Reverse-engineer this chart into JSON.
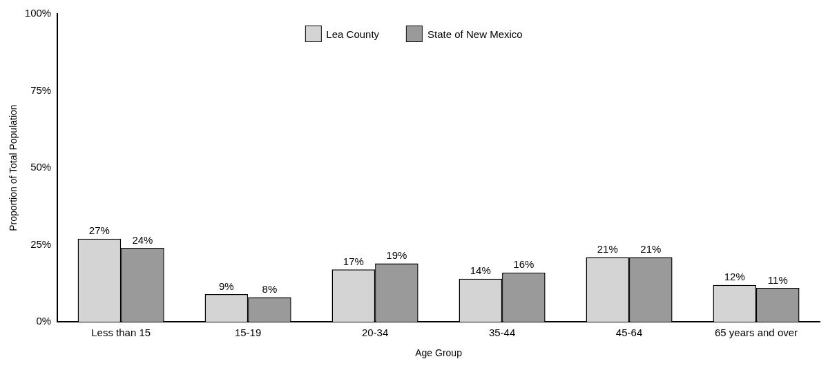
{
  "chart_data": {
    "type": "bar",
    "xlabel": "Age Group",
    "ylabel": "Proportion of Total Population",
    "categories": [
      "Less than 15",
      "15-19",
      "20-34",
      "35-44",
      "45-64",
      "65 years and over"
    ],
    "series": [
      {
        "name": "Lea County",
        "color": "#d4d4d4",
        "values": [
          27,
          9,
          17,
          14,
          21,
          12
        ],
        "value_labels": [
          "27%",
          "9%",
          "17%",
          "14%",
          "21%",
          "12%"
        ]
      },
      {
        "name": "State of New Mexico",
        "color": "#9a9a9a",
        "values": [
          24,
          8,
          19,
          16,
          21,
          11
        ],
        "value_labels": [
          "24%",
          "8%",
          "19%",
          "16%",
          "21%",
          "11%"
        ]
      }
    ],
    "ylim": [
      0,
      100
    ],
    "yticks": [
      {
        "value": 0,
        "label": "0%"
      },
      {
        "value": 25,
        "label": "25%"
      },
      {
        "value": 50,
        "label": "50%"
      },
      {
        "value": 75,
        "label": "75%"
      },
      {
        "value": 100,
        "label": "100%"
      }
    ],
    "grid": false,
    "legend": "top"
  }
}
